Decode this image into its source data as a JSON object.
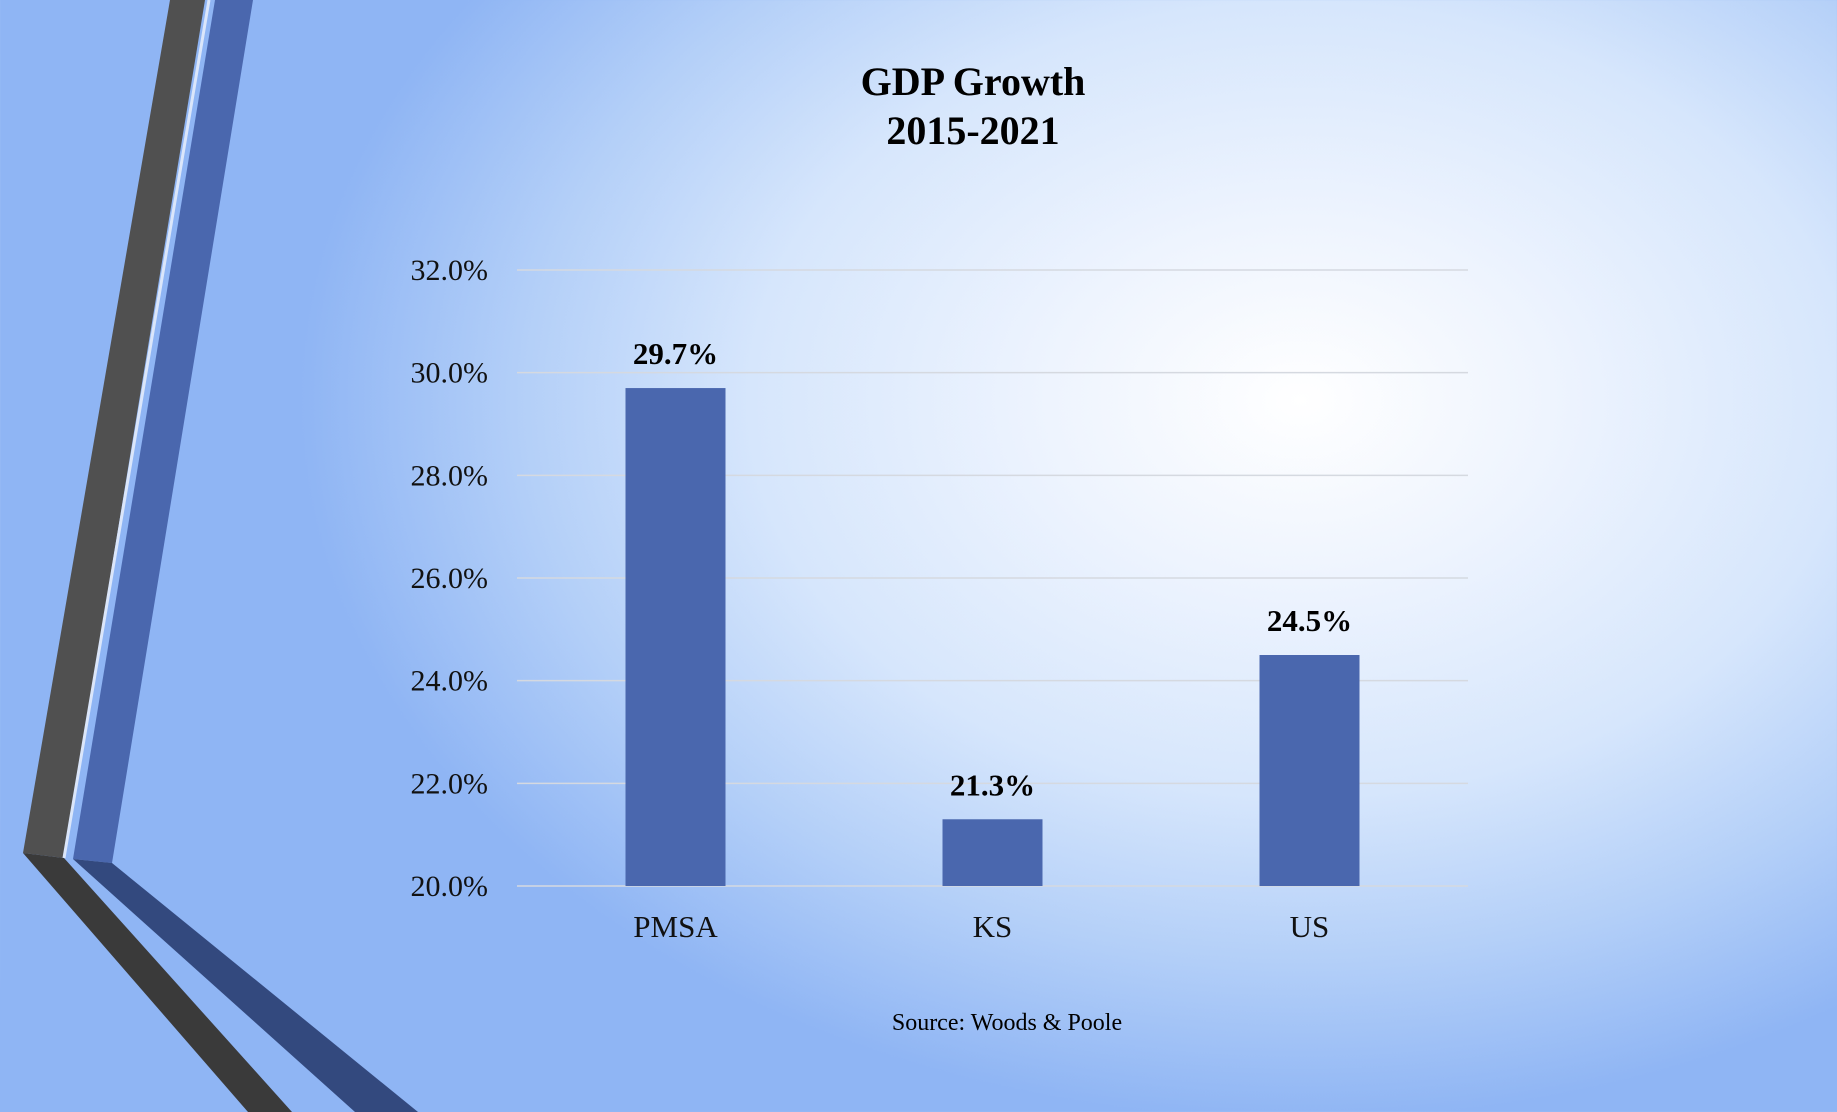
{
  "title": [
    "GDP Growth",
    "2015-2021"
  ],
  "source": "Source: Woods & Poole",
  "colors": {
    "bar": "#4a67ae",
    "gridline": "#d5d9e0",
    "ribbon_dark": "#505050",
    "ribbon_blue": "#4a67ae"
  },
  "chart_data": {
    "type": "bar",
    "title": "GDP Growth 2015-2021",
    "categories": [
      "PMSA",
      "KS",
      "US"
    ],
    "values": [
      29.7,
      21.3,
      24.5
    ],
    "value_labels": [
      "29.7%",
      "21.3%",
      "24.5%"
    ],
    "ylim": [
      20.0,
      32.0
    ],
    "yticks": [
      20.0,
      22.0,
      24.0,
      26.0,
      28.0,
      30.0,
      32.0
    ],
    "ytick_labels": [
      "20.0%",
      "22.0%",
      "24.0%",
      "26.0%",
      "28.0%",
      "30.0%",
      "32.0%"
    ],
    "xlabel": "",
    "ylabel": "",
    "grid": true,
    "legend": "none"
  }
}
